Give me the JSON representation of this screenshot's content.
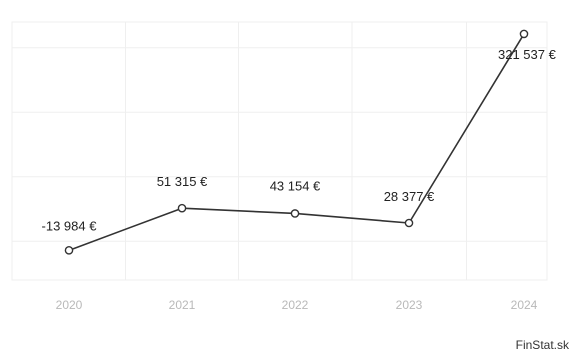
{
  "chart_data": {
    "type": "line",
    "categories": [
      "2020",
      "2021",
      "2022",
      "2023",
      "2024"
    ],
    "series": [
      {
        "values": [
          -13984,
          51315,
          43154,
          28377,
          321537
        ],
        "labels": [
          "-13 984 €",
          "51 315 €",
          "43 154 €",
          "28 377 €",
          "321 537 €"
        ]
      }
    ],
    "xlabel": "",
    "ylabel": "",
    "ylim": [
      -60000,
      340000
    ],
    "grid": true,
    "colors": {
      "line": "#333333",
      "marker_fill": "#ffffff",
      "grid": "#efefef",
      "tick_text": "#b9b9b9",
      "label_text": "#222222"
    }
  },
  "brand": {
    "text": "FinStat.sk"
  }
}
